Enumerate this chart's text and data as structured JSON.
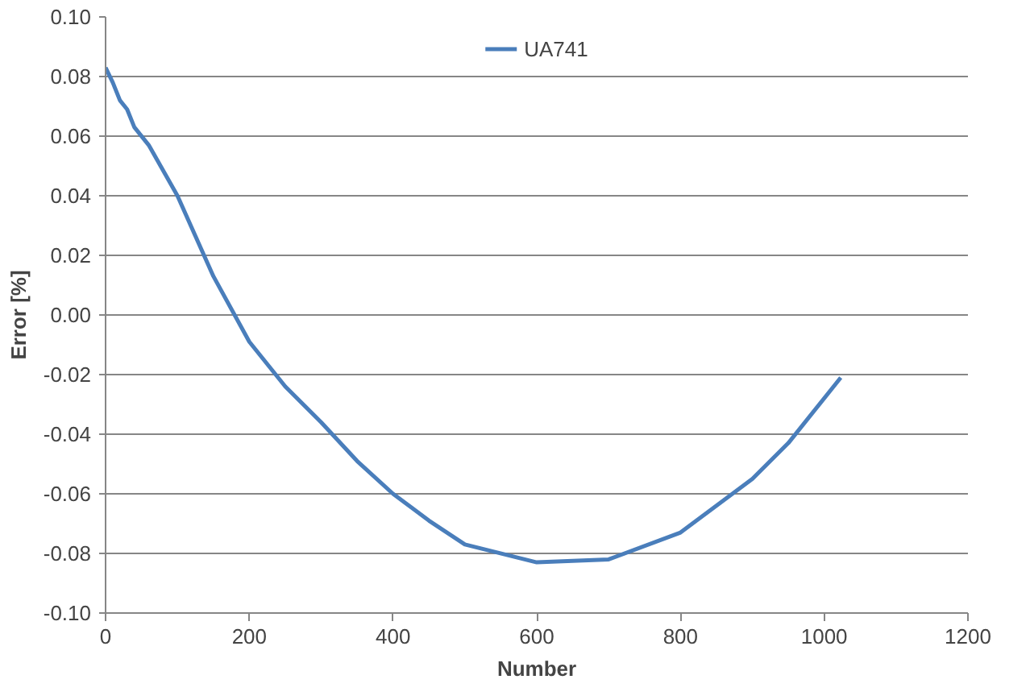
{
  "chart_data": {
    "type": "line",
    "xlabel": "Number",
    "ylabel": "Error [%]",
    "x": [
      0,
      10,
      20,
      30,
      40,
      60,
      100,
      150,
      200,
      250,
      300,
      350,
      400,
      450,
      500,
      600,
      700,
      800,
      900,
      950,
      1023
    ],
    "series": [
      {
        "name": "UA741",
        "color": "#4a7ebb",
        "values": [
          0.083,
          0.078,
          0.072,
          0.069,
          0.063,
          0.057,
          0.04,
          0.013,
          -0.009,
          -0.024,
          -0.036,
          -0.049,
          -0.06,
          -0.069,
          -0.077,
          -0.083,
          -0.082,
          -0.073,
          -0.055,
          -0.043,
          -0.021
        ]
      }
    ],
    "xlim": [
      0,
      1200
    ],
    "xticks": [
      0,
      200,
      400,
      600,
      800,
      1000,
      1200
    ],
    "ylim": [
      -0.1,
      0.1
    ],
    "yticks": [
      {
        "value": -0.1,
        "label": "-0.10"
      },
      {
        "value": -0.08,
        "label": "-0.08"
      },
      {
        "value": -0.06,
        "label": "-0.06"
      },
      {
        "value": -0.04,
        "label": "-0.04"
      },
      {
        "value": -0.02,
        "label": "-0.02"
      },
      {
        "value": 0,
        "label": "0.00"
      },
      {
        "value": 0.02,
        "label": "0.02"
      },
      {
        "value": 0.04,
        "label": "0.04"
      },
      {
        "value": 0.06,
        "label": "0.06"
      },
      {
        "value": 0.08,
        "label": "0.08"
      },
      {
        "value": 0.1,
        "label": "0.10"
      }
    ],
    "grid": "y",
    "legend": "top",
    "marker": "none",
    "line_style": "solid"
  }
}
